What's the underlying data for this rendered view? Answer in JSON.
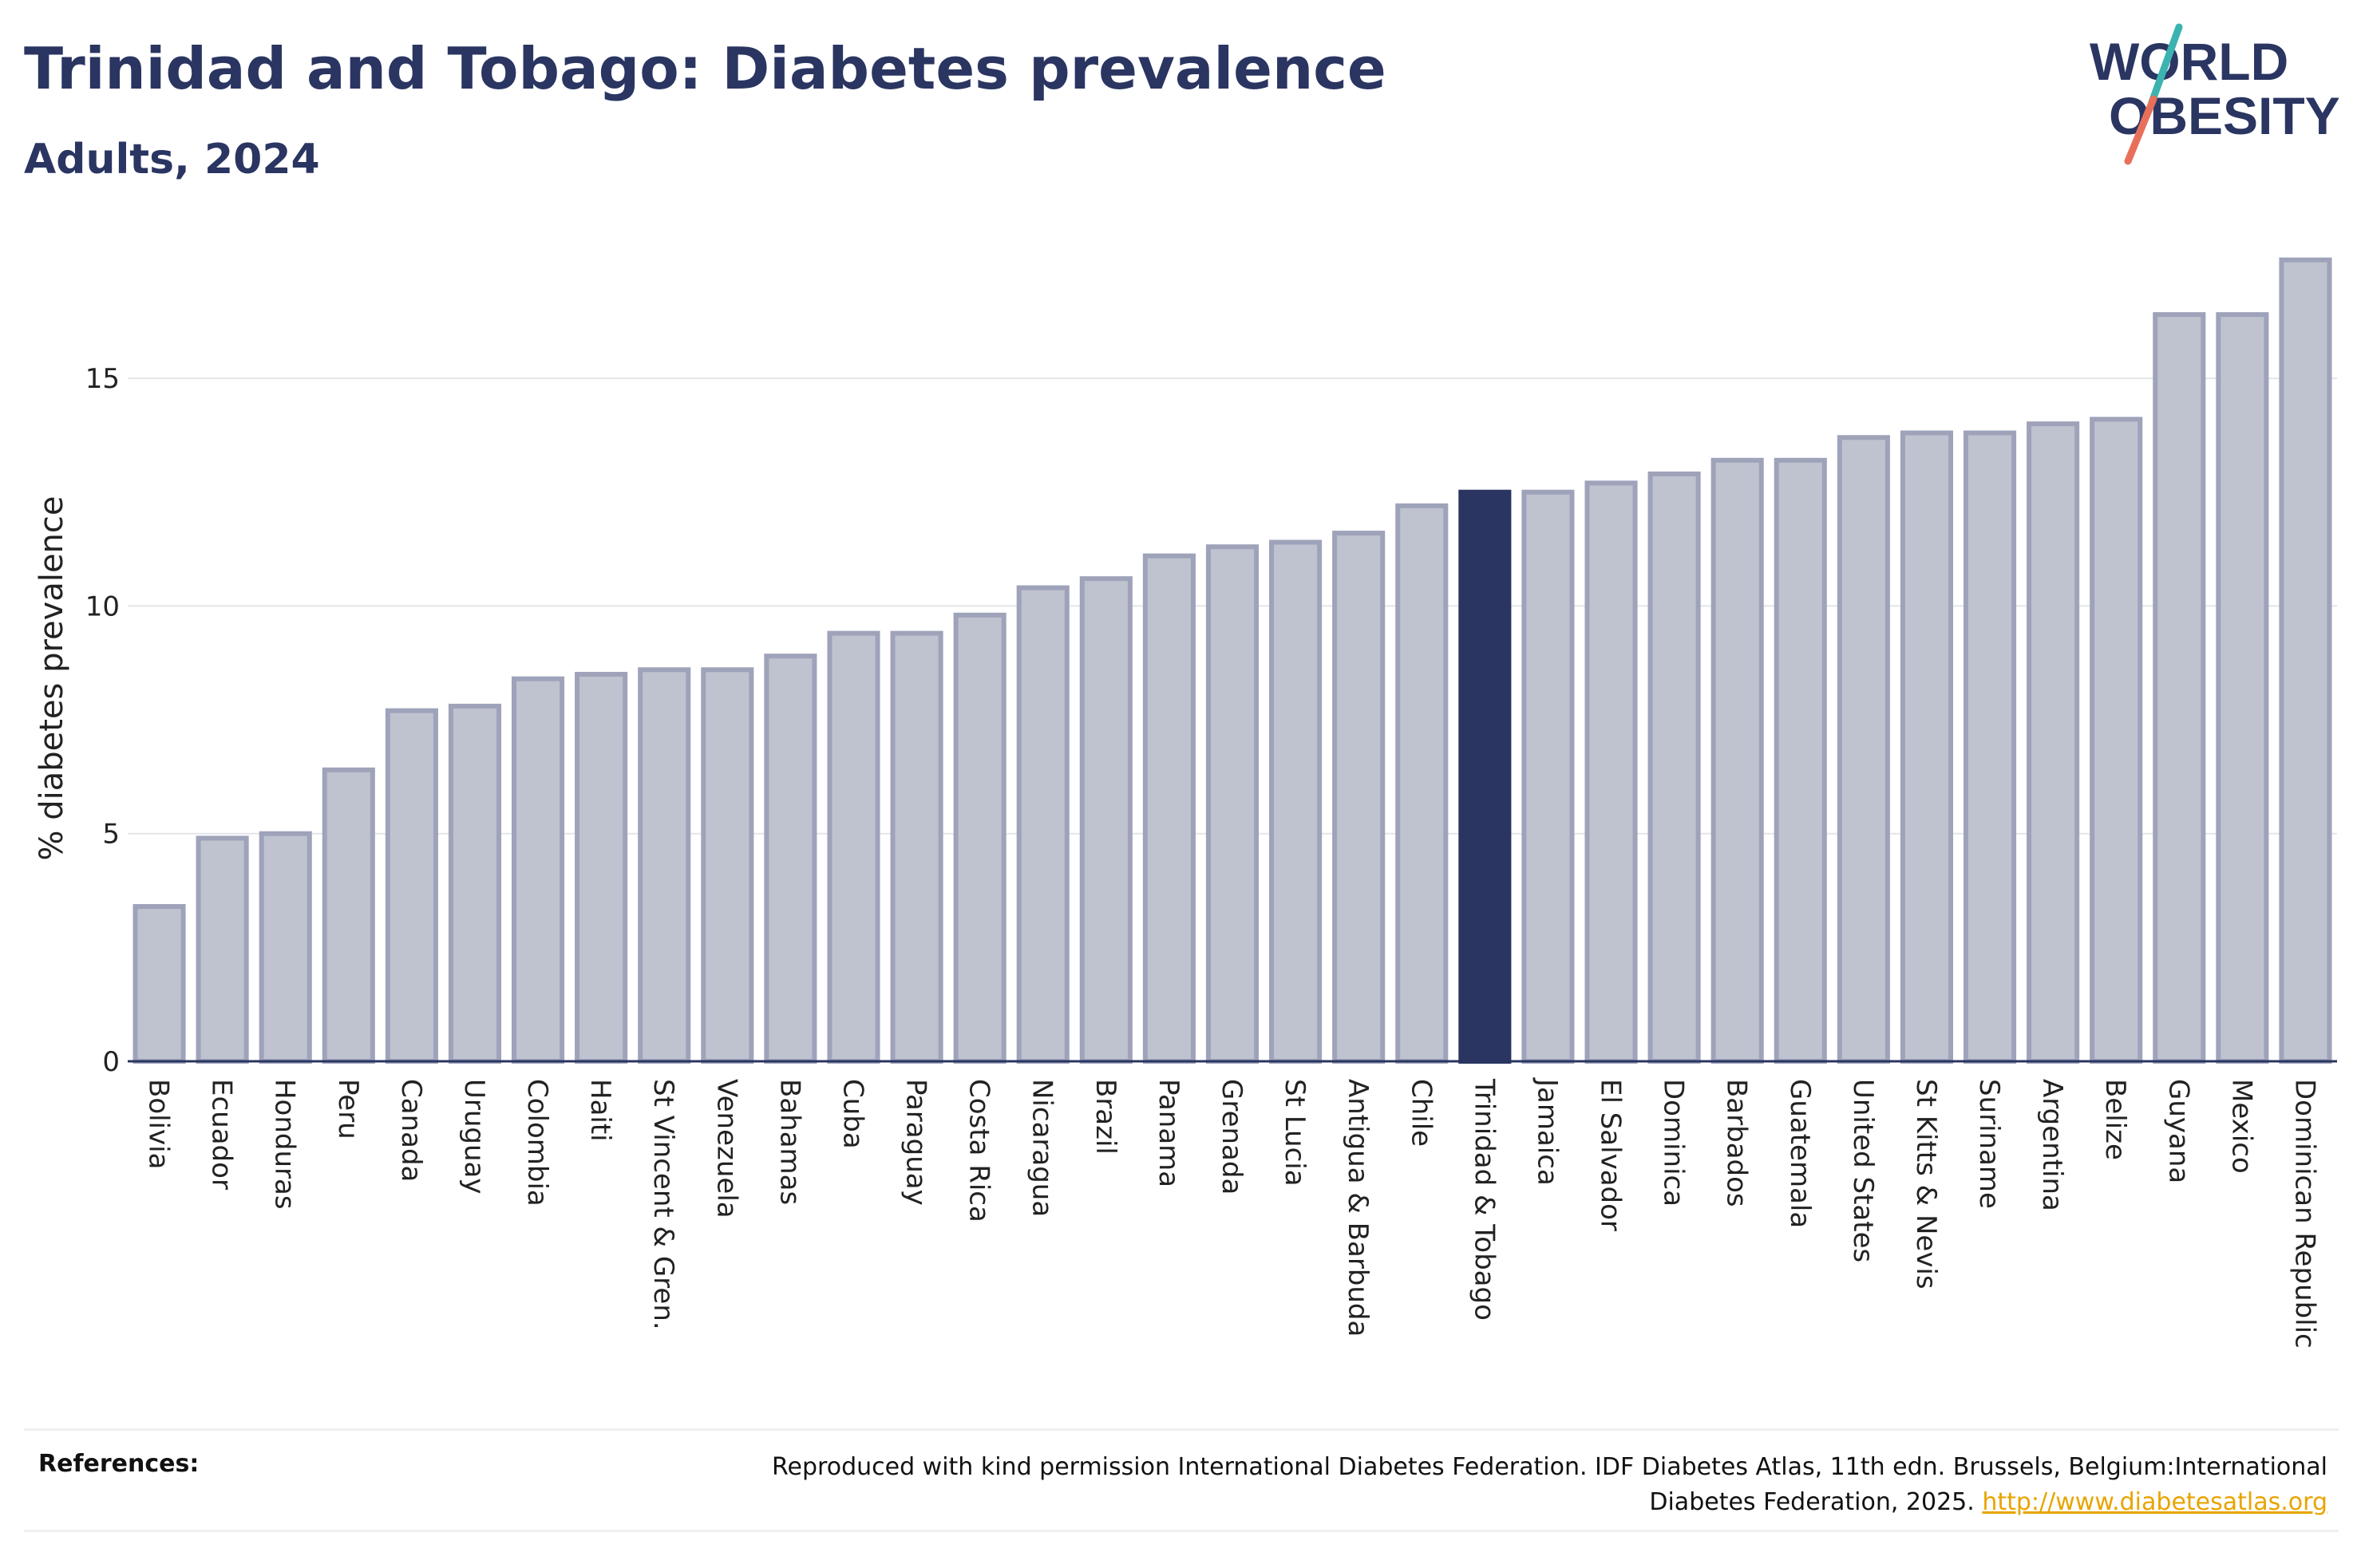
{
  "header": {
    "title": "Trinidad and Tobago: Diabetes prevalence",
    "subtitle": "Adults, 2024"
  },
  "logo": {
    "line1": "WORLD",
    "line2": "OBESITY"
  },
  "colors": {
    "title": "#2a3561",
    "bar": "#bfc2cf",
    "bar_border": "#9ea3ba",
    "highlight": "#2a3561",
    "link": "#e8a400",
    "logo_slash_top": "#3bb3b0",
    "logo_slash_bottom": "#e8705a"
  },
  "chart_data": {
    "type": "bar",
    "ylabel": "% diabetes prevalence",
    "ylim": [
      0,
      17.7
    ],
    "yticks": [
      0,
      5,
      10,
      15
    ],
    "grid": true,
    "highlight": "Trinidad & Tobago",
    "categories": [
      "Bolivia",
      "Ecuador",
      "Honduras",
      "Peru",
      "Canada",
      "Uruguay",
      "Colombia",
      "Haiti",
      "St Vincent & Gren.",
      "Venezuela",
      "Bahamas",
      "Cuba",
      "Paraguay",
      "Costa Rica",
      "Nicaragua",
      "Brazil",
      "Panama",
      "Grenada",
      "St Lucia",
      "Antigua & Barbuda",
      "Chile",
      "Trinidad & Tobago",
      "Jamaica",
      "El Salvador",
      "Dominica",
      "Barbados",
      "Guatemala",
      "United States",
      "St Kitts & Nevis",
      "Suriname",
      "Argentina",
      "Belize",
      "Guyana",
      "Mexico",
      "Dominican Republic"
    ],
    "values": [
      3.4,
      4.9,
      5.0,
      6.4,
      7.7,
      7.8,
      8.4,
      8.5,
      8.6,
      8.6,
      8.9,
      9.4,
      9.4,
      9.8,
      10.4,
      10.6,
      11.1,
      11.3,
      11.4,
      11.6,
      12.2,
      12.5,
      12.5,
      12.7,
      12.9,
      13.2,
      13.2,
      13.7,
      13.8,
      13.8,
      14.0,
      14.1,
      16.4,
      16.4,
      17.6
    ]
  },
  "references": {
    "label": "References:",
    "text": "Reproduced with kind permission International Diabetes Federation. IDF Diabetes Atlas, 11th edn. Brussels, Belgium:International Diabetes Federation, 2025.",
    "link": "http://www.diabetesatlas.org"
  }
}
